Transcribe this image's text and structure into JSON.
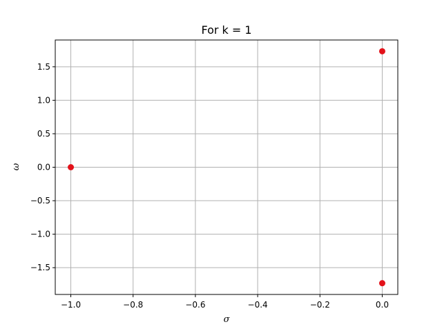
{
  "chart_data": {
    "type": "scatter",
    "title": "For k = 1",
    "xlabel": "σ",
    "ylabel": "ω",
    "xlim": [
      -1.05,
      0.05
    ],
    "ylim": [
      -1.9,
      1.9
    ],
    "grid": true,
    "x_ticks": [
      -1.0,
      -0.8,
      -0.6,
      -0.4,
      -0.2,
      0.0
    ],
    "x_tick_labels": [
      "−1.0",
      "−0.8",
      "−0.6",
      "−0.4",
      "−0.2",
      "0.0"
    ],
    "y_ticks": [
      1.5,
      1.0,
      0.5,
      0.0,
      -0.5,
      -1.0,
      -1.5
    ],
    "y_tick_labels": [
      "1.5",
      "1.0",
      "0.5",
      "0.0",
      "−0.5",
      "−1.0",
      "−1.5"
    ],
    "series": [
      {
        "color": "#e3121a",
        "points": [
          {
            "x": -1.0,
            "y": 0.0
          },
          {
            "x": 0.0,
            "y": 1.732
          },
          {
            "x": 0.0,
            "y": -1.732
          }
        ]
      }
    ]
  }
}
